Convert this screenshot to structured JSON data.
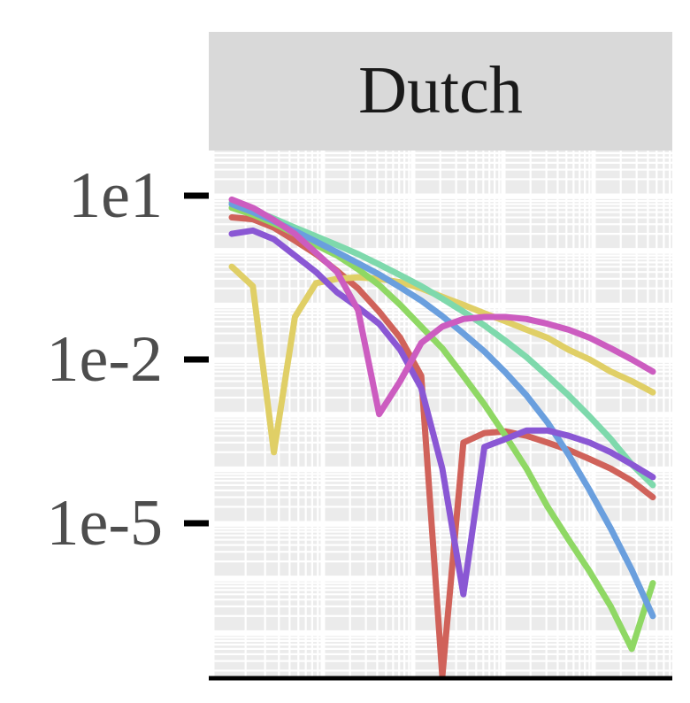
{
  "chart_data": {
    "type": "line",
    "facet_label": "Dutch",
    "title": "",
    "xlabel": "",
    "ylabel": "",
    "y_scale": "log10",
    "ylim": [
      1e-09,
      30
    ],
    "y_ticks": [
      {
        "value": 10,
        "label": "1e1"
      },
      {
        "value": 0.01,
        "label": "1e-2"
      },
      {
        "value": 1e-05,
        "label": "1e-5"
      }
    ],
    "grid": "on",
    "panel_background": "#ebebeb",
    "strip_background": "#d9d9d9",
    "x": [
      0,
      5,
      10,
      15,
      20,
      25,
      30,
      35,
      40,
      45,
      50,
      55,
      60,
      65,
      70,
      75,
      80,
      85,
      90,
      95,
      100
    ],
    "series": [
      {
        "color": "#d0625a",
        "y": [
          4.0,
          3.7,
          2.6,
          1.5,
          0.85,
          0.42,
          0.2,
          0.075,
          0.025,
          0.005,
          1e-09,
          0.0003,
          0.00045,
          0.00048,
          0.0004,
          0.0003,
          0.00022,
          0.00015,
          0.0001,
          6e-05,
          3e-05
        ]
      },
      {
        "color": "#e0cf66",
        "y": [
          0.5,
          0.22,
          0.0002,
          0.06,
          0.25,
          0.3,
          0.32,
          0.3,
          0.26,
          0.2,
          0.14,
          0.1,
          0.07,
          0.05,
          0.035,
          0.025,
          0.015,
          0.01,
          0.006,
          0.004,
          0.0025
        ]
      },
      {
        "color": "#8fd864",
        "y": [
          6.0,
          4.5,
          3.1,
          2.0,
          1.25,
          0.8,
          0.45,
          0.23,
          0.1,
          0.04,
          0.016,
          0.005,
          0.0015,
          0.0004,
          0.0001,
          2e-05,
          5e-06,
          1.3e-06,
          3e-07,
          5e-08,
          8e-07
        ]
      },
      {
        "color": "#7ed9ac",
        "y": [
          7.5,
          5.5,
          3.8,
          2.6,
          1.8,
          1.25,
          0.85,
          0.55,
          0.35,
          0.22,
          0.13,
          0.075,
          0.042,
          0.022,
          0.011,
          0.005,
          0.0022,
          0.0009,
          0.00035,
          0.00012,
          5e-05
        ]
      },
      {
        "color": "#6a9fde",
        "y": [
          7.0,
          5.0,
          3.4,
          2.25,
          1.45,
          0.92,
          0.58,
          0.36,
          0.21,
          0.12,
          0.062,
          0.03,
          0.014,
          0.0058,
          0.0022,
          0.0007,
          0.00018,
          4e-05,
          8e-06,
          1.4e-06,
          2e-07
        ]
      },
      {
        "color": "#8a57d4",
        "y": [
          2.0,
          2.3,
          1.6,
          0.8,
          0.4,
          0.17,
          0.09,
          0.045,
          0.015,
          0.003,
          0.0001,
          5e-07,
          0.00025,
          0.00035,
          0.0005,
          0.0005,
          0.0004,
          0.0003,
          0.0002,
          0.00012,
          7e-05
        ]
      },
      {
        "color": "#cc5cc0",
        "y": [
          8.5,
          6.0,
          3.6,
          2.0,
          0.9,
          0.4,
          0.08,
          0.001,
          0.004,
          0.02,
          0.04,
          0.055,
          0.06,
          0.06,
          0.055,
          0.045,
          0.035,
          0.025,
          0.016,
          0.01,
          0.006
        ]
      }
    ]
  }
}
